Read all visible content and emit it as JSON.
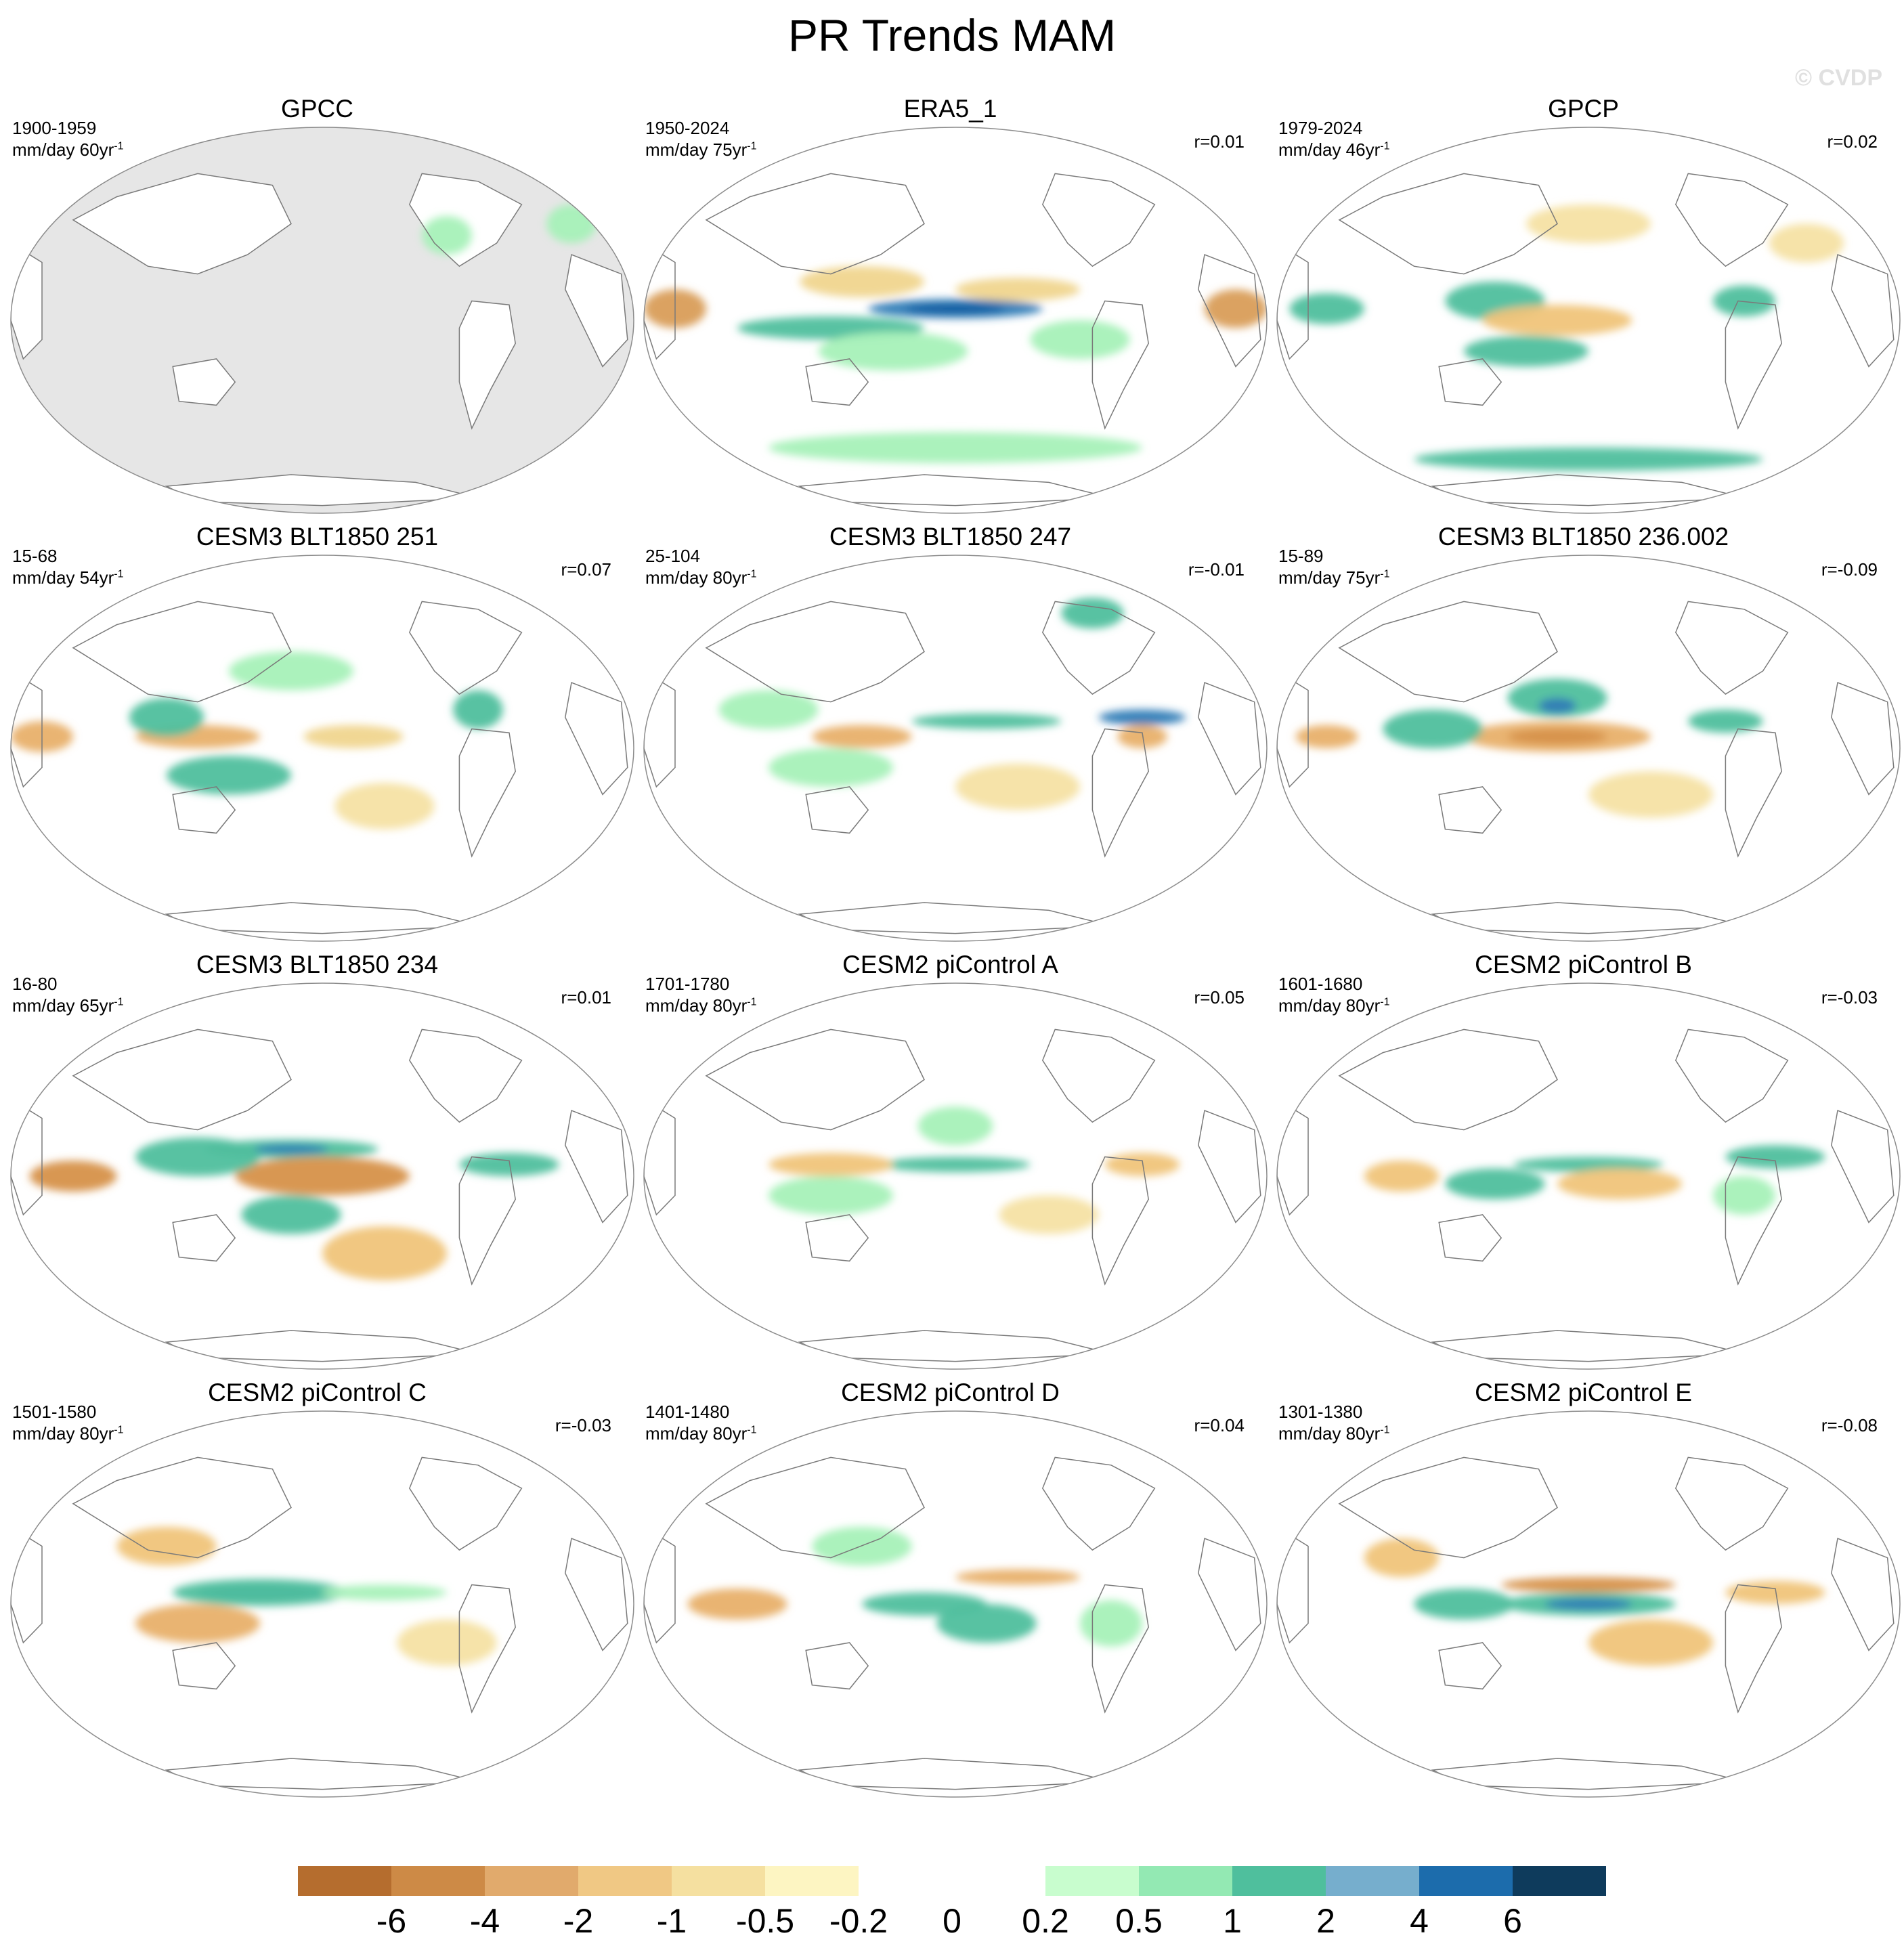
{
  "title": "PR Trends MAM",
  "watermark": "© CVDP",
  "panels": [
    {
      "title": "GPCC",
      "period": "1900-1959",
      "units": "mm/day 60yr",
      "corr": "",
      "mask": true,
      "blobs": [
        [
          0.9,
          0.25,
          0.04,
          0.05,
          "#a6f1b8"
        ],
        [
          1.1,
          0.25,
          0.04,
          0.05,
          "#a6f1b8"
        ],
        [
          1.3,
          0.25,
          0.04,
          0.05,
          "#a6f1b8"
        ],
        [
          0.7,
          0.28,
          0.04,
          0.05,
          "#a6f1b8"
        ]
      ]
    },
    {
      "title": "ERA5_1",
      "period": "1950-2024",
      "units": "mm/day 75yr",
      "corr": "r=0.01",
      "mask": false,
      "blobs": [
        [
          0.5,
          0.47,
          0.14,
          0.025,
          "#2f7cb6"
        ],
        [
          0.5,
          0.47,
          0.08,
          0.012,
          "#0a5aa0"
        ],
        [
          0.3,
          0.52,
          0.15,
          0.03,
          "#4fbf9d"
        ],
        [
          0.05,
          0.47,
          0.05,
          0.05,
          "#d99d5a"
        ],
        [
          0.95,
          0.47,
          0.05,
          0.05,
          "#d99d5a"
        ],
        [
          0.4,
          0.58,
          0.12,
          0.05,
          "#a6f1b8"
        ],
        [
          0.5,
          0.83,
          0.3,
          0.04,
          "#a6f1b8"
        ],
        [
          0.6,
          0.42,
          0.1,
          0.03,
          "#f0d58e"
        ],
        [
          0.35,
          0.4,
          0.1,
          0.04,
          "#f0d58e"
        ],
        [
          0.7,
          0.55,
          0.08,
          0.05,
          "#a6f1b8"
        ]
      ]
    },
    {
      "title": "GPCP",
      "period": "1979-2024",
      "units": "mm/day 46yr",
      "corr": "r=0.02",
      "mask": false,
      "blobs": [
        [
          0.35,
          0.45,
          0.08,
          0.05,
          "#4fbf9d"
        ],
        [
          0.4,
          0.58,
          0.1,
          0.04,
          "#4fbf9d"
        ],
        [
          0.45,
          0.5,
          0.12,
          0.04,
          "#f0c47a"
        ],
        [
          0.08,
          0.47,
          0.06,
          0.04,
          "#4fbf9d"
        ],
        [
          0.75,
          0.45,
          0.05,
          0.04,
          "#4fbf9d"
        ],
        [
          0.5,
          0.86,
          0.28,
          0.03,
          "#4fbf9d"
        ],
        [
          0.5,
          0.25,
          0.1,
          0.05,
          "#f5e2a4"
        ],
        [
          0.85,
          0.3,
          0.06,
          0.05,
          "#f5e2a4"
        ]
      ]
    },
    {
      "title": "CESM3 BLT1850 251",
      "period": "15-68",
      "units": "mm/day 54yr",
      "corr": "r=0.07",
      "mask": false,
      "blobs": [
        [
          0.3,
          0.47,
          0.1,
          0.03,
          "#e8b06a"
        ],
        [
          0.05,
          0.47,
          0.05,
          0.04,
          "#e8b06a"
        ],
        [
          0.25,
          0.42,
          0.06,
          0.05,
          "#4fbf9d"
        ],
        [
          0.35,
          0.57,
          0.1,
          0.05,
          "#4fbf9d"
        ],
        [
          0.55,
          0.47,
          0.08,
          0.03,
          "#f0d58e"
        ],
        [
          0.75,
          0.4,
          0.04,
          0.05,
          "#4fbf9d"
        ],
        [
          0.6,
          0.65,
          0.08,
          0.06,
          "#f5e2a4"
        ],
        [
          0.45,
          0.3,
          0.1,
          0.05,
          "#a6f1b8"
        ]
      ]
    },
    {
      "title": "CESM3 BLT1850 247",
      "period": "25-104",
      "units": "mm/day 80yr",
      "corr": "r=-0.01",
      "mask": false,
      "blobs": [
        [
          0.35,
          0.47,
          0.08,
          0.03,
          "#e8b06a"
        ],
        [
          0.55,
          0.43,
          0.12,
          0.02,
          "#4fbf9d"
        ],
        [
          0.8,
          0.42,
          0.07,
          0.02,
          "#2f7cb6"
        ],
        [
          0.8,
          0.47,
          0.04,
          0.03,
          "#e8b06a"
        ],
        [
          0.3,
          0.55,
          0.1,
          0.05,
          "#a6f1b8"
        ],
        [
          0.72,
          0.15,
          0.05,
          0.04,
          "#4fbf9d"
        ],
        [
          0.6,
          0.6,
          0.1,
          0.06,
          "#f5e2a4"
        ],
        [
          0.2,
          0.4,
          0.08,
          0.05,
          "#a6f1b8"
        ]
      ]
    },
    {
      "title": "CESM3 BLT1850 236.002",
      "period": "15-89",
      "units": "mm/day 75yr",
      "corr": "r=-0.09",
      "mask": false,
      "blobs": [
        [
          0.45,
          0.47,
          0.15,
          0.04,
          "#e8b06a"
        ],
        [
          0.45,
          0.47,
          0.08,
          0.02,
          "#d6914a"
        ],
        [
          0.45,
          0.37,
          0.08,
          0.05,
          "#4fbf9d"
        ],
        [
          0.45,
          0.39,
          0.03,
          0.02,
          "#2f7cb6"
        ],
        [
          0.72,
          0.43,
          0.06,
          0.03,
          "#4fbf9d"
        ],
        [
          0.25,
          0.45,
          0.08,
          0.05,
          "#4fbf9d"
        ],
        [
          0.6,
          0.62,
          0.1,
          0.06,
          "#f5e2a4"
        ],
        [
          0.08,
          0.47,
          0.05,
          0.03,
          "#e8b06a"
        ]
      ]
    },
    {
      "title": "CESM3 BLT1850 234",
      "period": "16-80",
      "units": "mm/day 65yr",
      "corr": "r=0.01",
      "mask": false,
      "blobs": [
        [
          0.45,
          0.43,
          0.14,
          0.025,
          "#4fbf9d"
        ],
        [
          0.45,
          0.43,
          0.06,
          0.012,
          "#2f7cb6"
        ],
        [
          0.5,
          0.5,
          0.14,
          0.05,
          "#d6914a"
        ],
        [
          0.3,
          0.45,
          0.1,
          0.05,
          "#4fbf9d"
        ],
        [
          0.45,
          0.6,
          0.08,
          0.05,
          "#4fbf9d"
        ],
        [
          0.1,
          0.5,
          0.07,
          0.04,
          "#d6914a"
        ],
        [
          0.8,
          0.47,
          0.08,
          0.03,
          "#4fbf9d"
        ],
        [
          0.6,
          0.7,
          0.1,
          0.07,
          "#f0c47a"
        ]
      ]
    },
    {
      "title": "CESM2 piControl A",
      "period": "1701-1780",
      "units": "mm/day 80yr",
      "corr": "r=0.05",
      "mask": false,
      "blobs": [
        [
          0.5,
          0.47,
          0.12,
          0.02,
          "#4fbf9d"
        ],
        [
          0.3,
          0.47,
          0.1,
          0.03,
          "#f0c47a"
        ],
        [
          0.8,
          0.47,
          0.06,
          0.03,
          "#f0c47a"
        ],
        [
          0.5,
          0.37,
          0.06,
          0.05,
          "#a6f1b8"
        ],
        [
          0.3,
          0.55,
          0.1,
          0.05,
          "#a6f1b8"
        ],
        [
          0.65,
          0.6,
          0.08,
          0.05,
          "#f5e2a4"
        ]
      ]
    },
    {
      "title": "CESM2 piControl B",
      "period": "1601-1680",
      "units": "mm/day 80yr",
      "corr": "r=-0.03",
      "mask": false,
      "blobs": [
        [
          0.5,
          0.47,
          0.12,
          0.02,
          "#4fbf9d"
        ],
        [
          0.35,
          0.52,
          0.08,
          0.04,
          "#4fbf9d"
        ],
        [
          0.55,
          0.52,
          0.1,
          0.04,
          "#f0c47a"
        ],
        [
          0.8,
          0.45,
          0.08,
          0.03,
          "#4fbf9d"
        ],
        [
          0.2,
          0.5,
          0.06,
          0.04,
          "#f0c47a"
        ],
        [
          0.75,
          0.55,
          0.05,
          0.05,
          "#a6f1b8"
        ]
      ]
    },
    {
      "title": "CESM2 piControl C",
      "period": "1501-1580",
      "units": "mm/day 80yr",
      "corr": "r=-0.03",
      "mask": false,
      "blobs": [
        [
          0.4,
          0.47,
          0.1,
          0.02,
          "#2f7cb6"
        ],
        [
          0.4,
          0.47,
          0.14,
          0.035,
          "#4fbf9d"
        ],
        [
          0.3,
          0.55,
          0.1,
          0.05,
          "#e8b06a"
        ],
        [
          0.6,
          0.47,
          0.1,
          0.02,
          "#a6f1b8"
        ],
        [
          0.25,
          0.35,
          0.08,
          0.05,
          "#f0c47a"
        ],
        [
          0.7,
          0.6,
          0.08,
          0.06,
          "#f5e2a4"
        ]
      ]
    },
    {
      "title": "CESM2 piControl D",
      "period": "1401-1480",
      "units": "mm/day 80yr",
      "corr": "r=0.04",
      "mask": false,
      "blobs": [
        [
          0.6,
          0.43,
          0.1,
          0.02,
          "#e8b06a"
        ],
        [
          0.45,
          0.5,
          0.1,
          0.03,
          "#4fbf9d"
        ],
        [
          0.15,
          0.5,
          0.08,
          0.04,
          "#e8b06a"
        ],
        [
          0.55,
          0.55,
          0.08,
          0.05,
          "#4fbf9d"
        ],
        [
          0.35,
          0.35,
          0.08,
          0.05,
          "#a6f1b8"
        ],
        [
          0.75,
          0.55,
          0.05,
          0.06,
          "#a6f1b8"
        ]
      ]
    },
    {
      "title": "CESM2 piControl E",
      "period": "1301-1380",
      "units": "mm/day 80yr",
      "corr": "r=-0.08",
      "mask": false,
      "blobs": [
        [
          0.5,
          0.45,
          0.14,
          0.02,
          "#d6914a"
        ],
        [
          0.5,
          0.5,
          0.14,
          0.03,
          "#4fbf9d"
        ],
        [
          0.5,
          0.5,
          0.07,
          0.015,
          "#2f7cb6"
        ],
        [
          0.3,
          0.5,
          0.08,
          0.04,
          "#4fbf9d"
        ],
        [
          0.8,
          0.47,
          0.08,
          0.03,
          "#f0c47a"
        ],
        [
          0.6,
          0.6,
          0.1,
          0.06,
          "#f0c47a"
        ],
        [
          0.2,
          0.38,
          0.06,
          0.05,
          "#f0c47a"
        ]
      ]
    }
  ],
  "colorbar": {
    "colors": [
      "#b56d2e",
      "#cd8a46",
      "#e1aa6c",
      "#f0c884",
      "#f5e0a0",
      "#fdf5c2",
      "#ffffff",
      "#ffffff",
      "#c8fdce",
      "#93e9b3",
      "#4fbf9d",
      "#76aecd",
      "#1c6cac",
      "#0e3b5c"
    ],
    "labels": [
      "-6",
      "-4",
      "-2",
      "-1",
      "-0.5",
      "-0.2",
      "0",
      "0.2",
      "0.5",
      "1",
      "2",
      "4",
      "6"
    ]
  }
}
